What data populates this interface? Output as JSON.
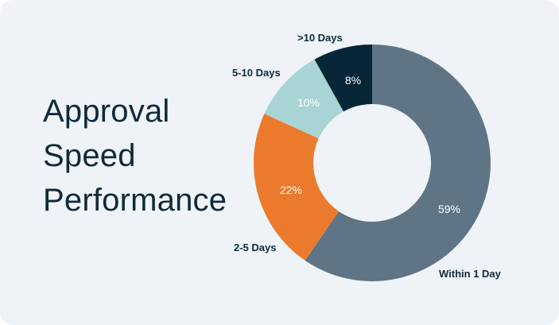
{
  "title_lines": [
    "Approval",
    "Speed",
    "Performance"
  ],
  "colors": {
    "background": "#eff3f7",
    "title": "#0f2a3a",
    "within_1_day": "#5f7585",
    "2_5_days": "#ec7a2c",
    "5_10_days": "#a8d4d4",
    "gt_10_days": "#072637"
  },
  "chart_data": {
    "type": "pie",
    "variant": "donut",
    "title": "Approval Speed Performance",
    "categories": [
      "Within 1 Day",
      "2-5 Days",
      "5-10 Days",
      ">10 Days"
    ],
    "values": [
      59,
      22,
      10,
      8
    ],
    "value_labels": [
      "59%",
      "22%",
      "10%",
      "8%"
    ],
    "colors": [
      "#5f7585",
      "#ec7a2c",
      "#a8d4d4",
      "#072637"
    ],
    "start_angle": "12 o'clock",
    "direction": "clockwise",
    "legend": "none (direct labels)"
  },
  "labels": {
    "within_1_day": "Within 1 Day",
    "2_5_days": "2-5 Days",
    "5_10_days": "5-10 Days",
    "gt_10_days": ">10 Days"
  },
  "percents": {
    "within_1_day": "59%",
    "2_5_days": "22%",
    "5_10_days": "10%",
    "gt_10_days": "8%"
  }
}
